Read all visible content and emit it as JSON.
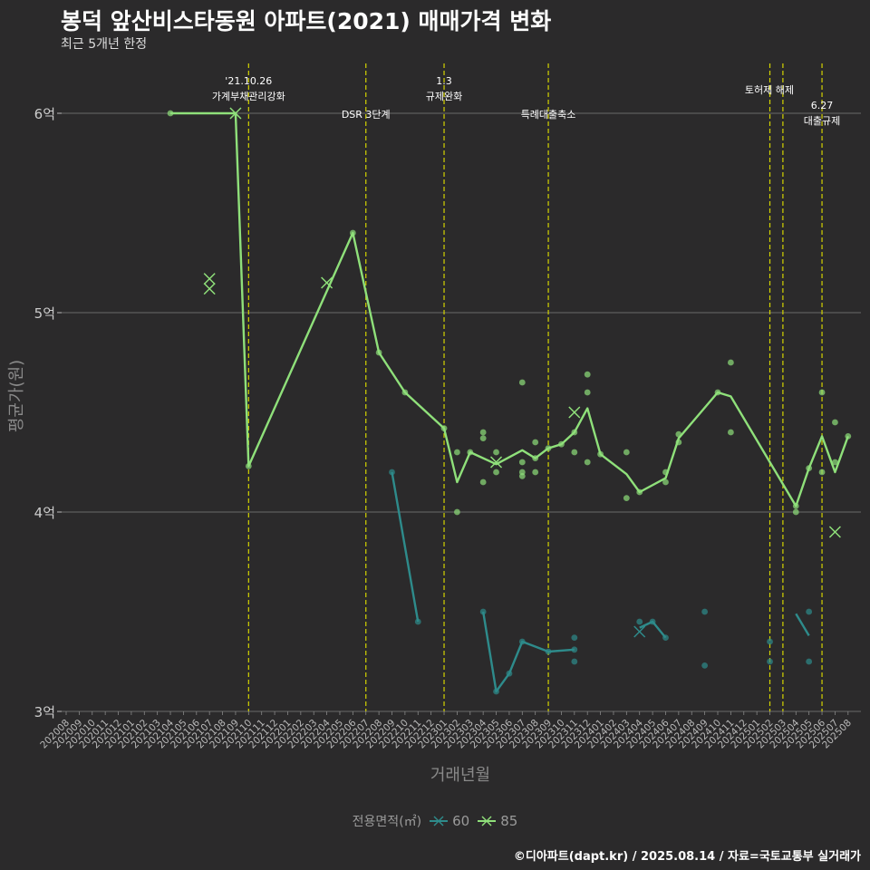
{
  "title": "봉덕 앞산비스타동원 아파트(2021) 매매가격 변화",
  "subtitle": "최근 5개년 한정",
  "caption": "©디아파트(dapt.kr) / 2025.08.14 / 자료=국토교통부 실거래가",
  "legend": {
    "title": "전용면적(㎡)",
    "items": [
      "60",
      "85"
    ]
  },
  "colors": {
    "background": "#2b2a2b",
    "s60": "#2e8b8b",
    "s85": "#8fe07a",
    "vline": "#d4d400",
    "grid": "#6a6a6a"
  },
  "chart_data": {
    "type": "line",
    "xlabel": "거래년월",
    "ylabel": "평균가(원)",
    "yticks": [
      {
        "value": 3,
        "label": "3억"
      },
      {
        "value": 4,
        "label": "4억"
      },
      {
        "value": 5,
        "label": "5억"
      },
      {
        "value": 6,
        "label": "6억"
      }
    ],
    "ylim": [
      2.95,
      6.25
    ],
    "months": [
      "202008",
      "202009",
      "202010",
      "202011",
      "202012",
      "202101",
      "202102",
      "202103",
      "202104",
      "202105",
      "202106",
      "202107",
      "202108",
      "202109",
      "202110",
      "202111",
      "202112",
      "202201",
      "202202",
      "202203",
      "202204",
      "202205",
      "202206",
      "202207",
      "202208",
      "202209",
      "202210",
      "202211",
      "202212",
      "202301",
      "202302",
      "202303",
      "202304",
      "202305",
      "202306",
      "202307",
      "202308",
      "202309",
      "202310",
      "202311",
      "202312",
      "202401",
      "202402",
      "202403",
      "202404",
      "202405",
      "202406",
      "202407",
      "202408",
      "202409",
      "202410",
      "202411",
      "202412",
      "202501",
      "202502",
      "202503",
      "202504",
      "202505",
      "202506",
      "202507",
      "202508"
    ],
    "series": [
      {
        "name": "60",
        "line": [
          [
            "202209",
            4.2
          ],
          [
            "202211",
            3.45
          ],
          null,
          [
            "202304",
            3.5
          ],
          [
            "202305",
            3.1
          ],
          [
            "202306",
            3.19
          ],
          [
            "202307",
            3.35
          ],
          [
            "202309",
            3.3
          ],
          [
            "202311",
            3.31
          ],
          null,
          [
            "202404",
            3.42
          ],
          [
            "202405",
            3.45
          ],
          [
            "202406",
            3.37
          ],
          null,
          [
            "202504",
            3.49
          ],
          [
            "202505",
            3.38
          ]
        ],
        "points": [
          [
            "202209",
            4.2
          ],
          [
            "202211",
            3.45
          ],
          [
            "202304",
            3.5
          ],
          [
            "202305",
            3.1
          ],
          [
            "202306",
            3.19
          ],
          [
            "202307",
            3.35
          ],
          [
            "202309",
            3.3
          ],
          [
            "202311",
            3.31
          ],
          [
            "202311",
            3.37
          ],
          [
            "202311",
            3.25
          ],
          [
            "202404",
            3.45
          ],
          [
            "202405",
            3.45
          ],
          [
            "202406",
            3.37
          ],
          [
            "202409",
            3.5
          ],
          [
            "202409",
            3.23
          ],
          [
            "202502",
            3.35
          ],
          [
            "202502",
            3.25
          ],
          [
            "202505",
            3.5
          ],
          [
            "202505",
            3.25
          ]
        ],
        "crosses": [
          [
            "202404",
            3.4
          ]
        ]
      },
      {
        "name": "85",
        "line": [
          [
            "202104",
            6.0
          ],
          [
            "202109",
            6.0
          ],
          [
            "202110",
            4.23
          ],
          [
            "202206",
            5.4
          ],
          [
            "202208",
            4.8
          ],
          [
            "202210",
            4.6
          ],
          [
            "202301",
            4.42
          ],
          [
            "202302",
            4.15
          ],
          [
            "202303",
            4.3
          ],
          [
            "202305",
            4.24
          ],
          [
            "202307",
            4.31
          ],
          [
            "202308",
            4.27
          ],
          [
            "202309",
            4.32
          ],
          [
            "202310",
            4.34
          ],
          [
            "202311",
            4.4
          ],
          [
            "202312",
            4.52
          ],
          [
            "202401",
            4.29
          ],
          [
            "202403",
            4.19
          ],
          [
            "202404",
            4.1
          ],
          [
            "202406",
            4.17
          ],
          [
            "202407",
            4.37
          ],
          [
            "202410",
            4.6
          ],
          [
            "202411",
            4.58
          ],
          [
            "202504",
            4.03
          ],
          [
            "202505",
            4.22
          ],
          [
            "202506",
            4.38
          ],
          [
            "202507",
            4.2
          ],
          [
            "202508",
            4.38
          ]
        ],
        "points": [
          [
            "202104",
            6.0
          ],
          [
            "202110",
            4.23
          ],
          [
            "202206",
            5.4
          ],
          [
            "202208",
            4.8
          ],
          [
            "202210",
            4.6
          ],
          [
            "202301",
            4.42
          ],
          [
            "202302",
            4.3
          ],
          [
            "202302",
            4.0
          ],
          [
            "202303",
            4.3
          ],
          [
            "202304",
            4.4
          ],
          [
            "202304",
            4.37
          ],
          [
            "202304",
            4.15
          ],
          [
            "202305",
            4.3
          ],
          [
            "202305",
            4.2
          ],
          [
            "202307",
            4.65
          ],
          [
            "202307",
            4.25
          ],
          [
            "202307",
            4.2
          ],
          [
            "202307",
            4.18
          ],
          [
            "202308",
            4.35
          ],
          [
            "202308",
            4.27
          ],
          [
            "202308",
            4.2
          ],
          [
            "202309",
            4.32
          ],
          [
            "202310",
            4.34
          ],
          [
            "202311",
            4.4
          ],
          [
            "202311",
            4.3
          ],
          [
            "202312",
            4.69
          ],
          [
            "202312",
            4.6
          ],
          [
            "202312",
            4.25
          ],
          [
            "202401",
            4.29
          ],
          [
            "202403",
            4.3
          ],
          [
            "202403",
            4.07
          ],
          [
            "202404",
            4.1
          ],
          [
            "202406",
            4.2
          ],
          [
            "202406",
            4.15
          ],
          [
            "202407",
            4.39
          ],
          [
            "202407",
            4.35
          ],
          [
            "202410",
            4.6
          ],
          [
            "202411",
            4.75
          ],
          [
            "202411",
            4.4
          ],
          [
            "202504",
            4.03
          ],
          [
            "202504",
            4.0
          ],
          [
            "202505",
            4.22
          ],
          [
            "202506",
            4.6
          ],
          [
            "202506",
            4.2
          ],
          [
            "202507",
            4.45
          ],
          [
            "202507",
            4.25
          ],
          [
            "202508",
            4.38
          ]
        ],
        "crosses": [
          [
            "202107",
            5.17
          ],
          [
            "202107",
            5.12
          ],
          [
            "202109",
            6.0
          ],
          [
            "202204",
            5.15
          ],
          [
            "202305",
            4.25
          ],
          [
            "202311",
            4.5
          ],
          [
            "202507",
            3.9
          ]
        ]
      }
    ],
    "events": [
      {
        "month": "202110",
        "lines": [
          "'21.10.26",
          "가계부채관리강화"
        ],
        "row": "top"
      },
      {
        "month": "202207",
        "lines": [
          "DSR 3단계"
        ],
        "row": "low"
      },
      {
        "month": "202301",
        "lines": [
          "1.3",
          "규제완화"
        ],
        "row": "top"
      },
      {
        "month": "202309",
        "lines": [
          "특례대출축소"
        ],
        "row": "low"
      },
      {
        "month": "202502",
        "lines": [],
        "row": "none"
      },
      {
        "month": "202503",
        "lines": [
          "토허제 해제"
        ],
        "row": "mid"
      },
      {
        "month": "202506",
        "lines": [
          "6.27",
          "대출규제"
        ],
        "row": "low2"
      }
    ]
  }
}
